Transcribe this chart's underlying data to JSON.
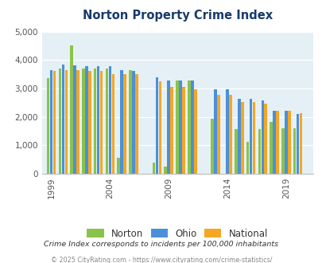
{
  "title": "Norton Property Crime Index",
  "subtitle": "Crime Index corresponds to incidents per 100,000 inhabitants",
  "footer": "© 2025 CityRating.com - https://www.cityrating.com/crime-statistics/",
  "years": [
    1999,
    2000,
    2001,
    2002,
    2003,
    2004,
    2005,
    2006,
    2008,
    2009,
    2010,
    2011,
    2013,
    2014,
    2015,
    2016,
    2017,
    2018,
    2019,
    2020
  ],
  "norton": [
    3350,
    3700,
    4520,
    3700,
    3700,
    3700,
    550,
    3650,
    380,
    240,
    3270,
    3270,
    1920,
    0,
    1570,
    1120,
    1570,
    1830,
    1590,
    1600
  ],
  "ohio": [
    3650,
    3830,
    3800,
    3780,
    3780,
    3780,
    3650,
    3620,
    3400,
    3290,
    3290,
    3290,
    2960,
    2960,
    2620,
    2620,
    2580,
    2200,
    2200,
    2110
  ],
  "national": [
    3620,
    3650,
    3650,
    3620,
    3620,
    3490,
    3490,
    3490,
    3250,
    3060,
    3060,
    2980,
    2780,
    2780,
    2510,
    2510,
    2460,
    2220,
    2220,
    2140
  ],
  "norton_color": "#8bc34a",
  "ohio_color": "#4a90d9",
  "national_color": "#f5a623",
  "bg_color": "#e4f0f6",
  "title_color": "#1a3a6b",
  "subtitle_color": "#333333",
  "footer_color": "#888888",
  "ylim": [
    0,
    5000
  ],
  "yticks": [
    0,
    1000,
    2000,
    3000,
    4000,
    5000
  ],
  "xtick_positions": [
    1999,
    2004,
    2009,
    2014,
    2019
  ],
  "xtick_labels": [
    "1999",
    "2004",
    "2009",
    "2014",
    "2019"
  ],
  "legend_labels": [
    "Norton",
    "Ohio",
    "National"
  ],
  "bar_width": 0.27,
  "xlim": [
    1998.2,
    2021.3
  ]
}
